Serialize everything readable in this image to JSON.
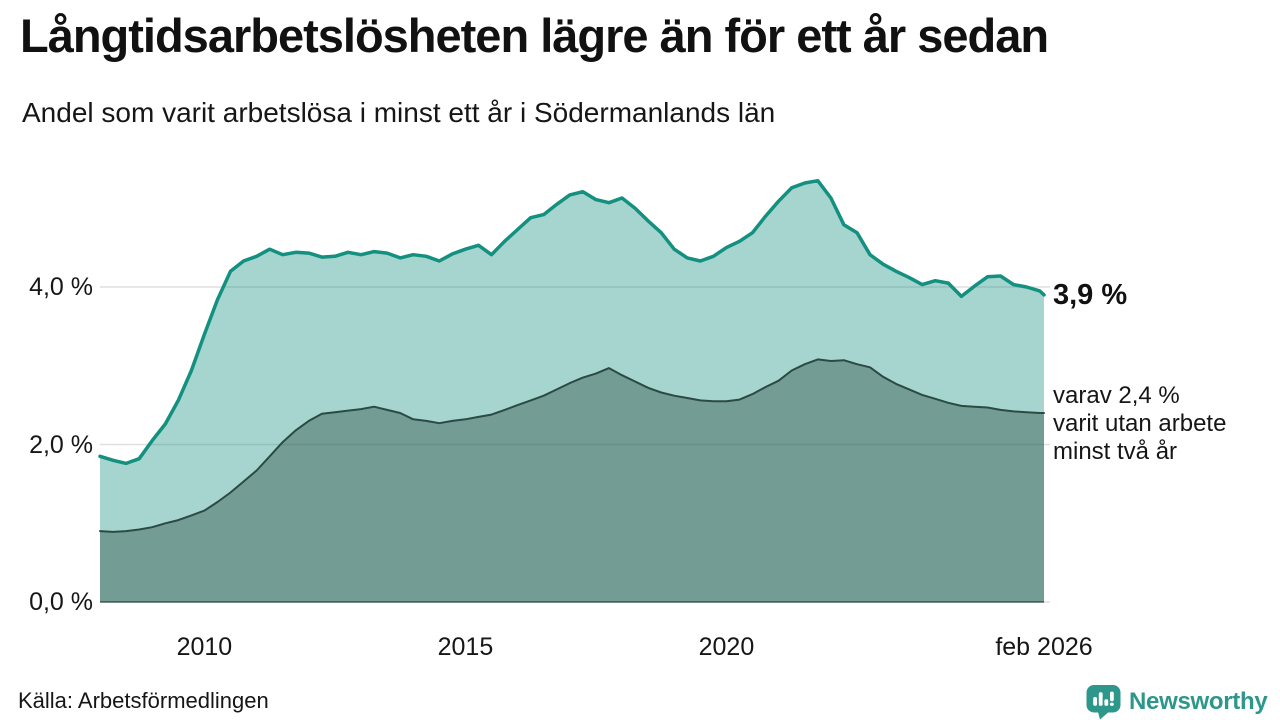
{
  "header": {
    "title": "Långtidsarbetslösheten lägre än för ett år sedan",
    "subtitle": "Andel som varit arbetslösa i minst ett år i Södermanlands län"
  },
  "chart_data": {
    "type": "area",
    "title": "Långtidsarbetslösheten lägre än för ett år sedan",
    "subtitle": "Andel som varit arbetslösa i minst ett år i Södermanlands län",
    "xlabel": "",
    "ylabel": "",
    "x_range": [
      2008.0,
      2026.083
    ],
    "ylim": [
      0,
      5.6
    ],
    "grid": true,
    "legend_position": "none",
    "y_ticks": [
      {
        "label": "0,0 %",
        "value": 0
      },
      {
        "label": "2,0 %",
        "value": 2
      },
      {
        "label": "4,0 %",
        "value": 4
      }
    ],
    "x_ticks": [
      {
        "label": "2010",
        "value": 2010
      },
      {
        "label": "2015",
        "value": 2015
      },
      {
        "label": "2020",
        "value": 2020
      },
      {
        "label": "feb 2026",
        "value": 2026.083
      }
    ],
    "x": [
      2008,
      2008.25,
      2008.5,
      2008.75,
      2009,
      2009.25,
      2009.5,
      2009.75,
      2010,
      2010.25,
      2010.5,
      2010.75,
      2011,
      2011.25,
      2011.5,
      2011.75,
      2012,
      2012.25,
      2012.5,
      2012.75,
      2013,
      2013.25,
      2013.5,
      2013.75,
      2014,
      2014.25,
      2014.5,
      2014.75,
      2015,
      2015.25,
      2015.5,
      2015.75,
      2016,
      2016.25,
      2016.5,
      2016.75,
      2017,
      2017.25,
      2017.5,
      2017.75,
      2018,
      2018.25,
      2018.5,
      2018.75,
      2019,
      2019.25,
      2019.5,
      2019.75,
      2020,
      2020.25,
      2020.5,
      2020.75,
      2021,
      2021.25,
      2021.5,
      2021.75,
      2022,
      2022.25,
      2022.5,
      2022.75,
      2023,
      2023.25,
      2023.5,
      2023.75,
      2024,
      2024.25,
      2024.5,
      2024.75,
      2025,
      2025.25,
      2025.5,
      2025.75,
      2026,
      2026.083
    ],
    "series": [
      {
        "name": "Andel arbetslösa minst ett år",
        "end_value_label": "3,9 %",
        "line_color": "#13907f",
        "fill_color": "rgba(18,145,127,0.38)",
        "line_width": 3.5,
        "values": [
          1.85,
          1.8,
          1.76,
          1.82,
          2.05,
          2.26,
          2.56,
          2.94,
          3.4,
          3.84,
          4.2,
          4.33,
          4.39,
          4.48,
          4.41,
          4.44,
          4.43,
          4.38,
          4.39,
          4.44,
          4.41,
          4.45,
          4.43,
          4.37,
          4.41,
          4.39,
          4.33,
          4.42,
          4.48,
          4.53,
          4.41,
          4.58,
          4.73,
          4.88,
          4.92,
          5.05,
          5.17,
          5.21,
          5.11,
          5.07,
          5.13,
          5.0,
          4.84,
          4.69,
          4.48,
          4.37,
          4.33,
          4.39,
          4.5,
          4.58,
          4.69,
          4.9,
          5.09,
          5.26,
          5.32,
          5.35,
          5.13,
          4.79,
          4.69,
          4.41,
          4.29,
          4.2,
          4.12,
          4.03,
          4.08,
          4.05,
          3.88,
          4.01,
          4.13,
          4.14,
          4.03,
          4.0,
          3.95,
          3.9
        ]
      },
      {
        "name": "varav utan arbete minst två år",
        "end_value_label": "2,4 %",
        "line_color": "#2b4a44",
        "fill_color": "rgba(40,70,64,0.40)",
        "line_width": 2,
        "values": [
          0.9,
          0.89,
          0.9,
          0.92,
          0.95,
          1.0,
          1.04,
          1.1,
          1.16,
          1.27,
          1.39,
          1.53,
          1.67,
          1.85,
          2.03,
          2.18,
          2.3,
          2.39,
          2.41,
          2.43,
          2.45,
          2.48,
          2.44,
          2.4,
          2.32,
          2.3,
          2.27,
          2.3,
          2.32,
          2.35,
          2.38,
          2.44,
          2.5,
          2.56,
          2.62,
          2.7,
          2.78,
          2.85,
          2.9,
          2.97,
          2.88,
          2.8,
          2.72,
          2.66,
          2.62,
          2.59,
          2.56,
          2.55,
          2.55,
          2.57,
          2.64,
          2.73,
          2.81,
          2.94,
          3.02,
          3.08,
          3.06,
          3.07,
          3.02,
          2.98,
          2.86,
          2.77,
          2.7,
          2.63,
          2.58,
          2.53,
          2.49,
          2.48,
          2.47,
          2.44,
          2.42,
          2.41,
          2.4,
          2.4
        ]
      }
    ]
  },
  "annotations": {
    "primary_value": "3,9 %",
    "secondary_lines": [
      "varav 2,4 %",
      "varit utan arbete",
      "minst två år"
    ]
  },
  "footer": {
    "source": "Källa: Arbetsförmedlingen",
    "brand": "Newsworthy"
  },
  "colors": {
    "line_primary": "#13907f",
    "fill_primary": "rgba(18,145,127,0.38)",
    "line_secondary": "#2b4a44",
    "fill_secondary": "rgba(40,70,64,0.40)",
    "grid": "#dfdfdf",
    "baseline": "rgba(35,60,55,0.55)",
    "brand_teal": "#2e978c",
    "text": "#161616"
  }
}
